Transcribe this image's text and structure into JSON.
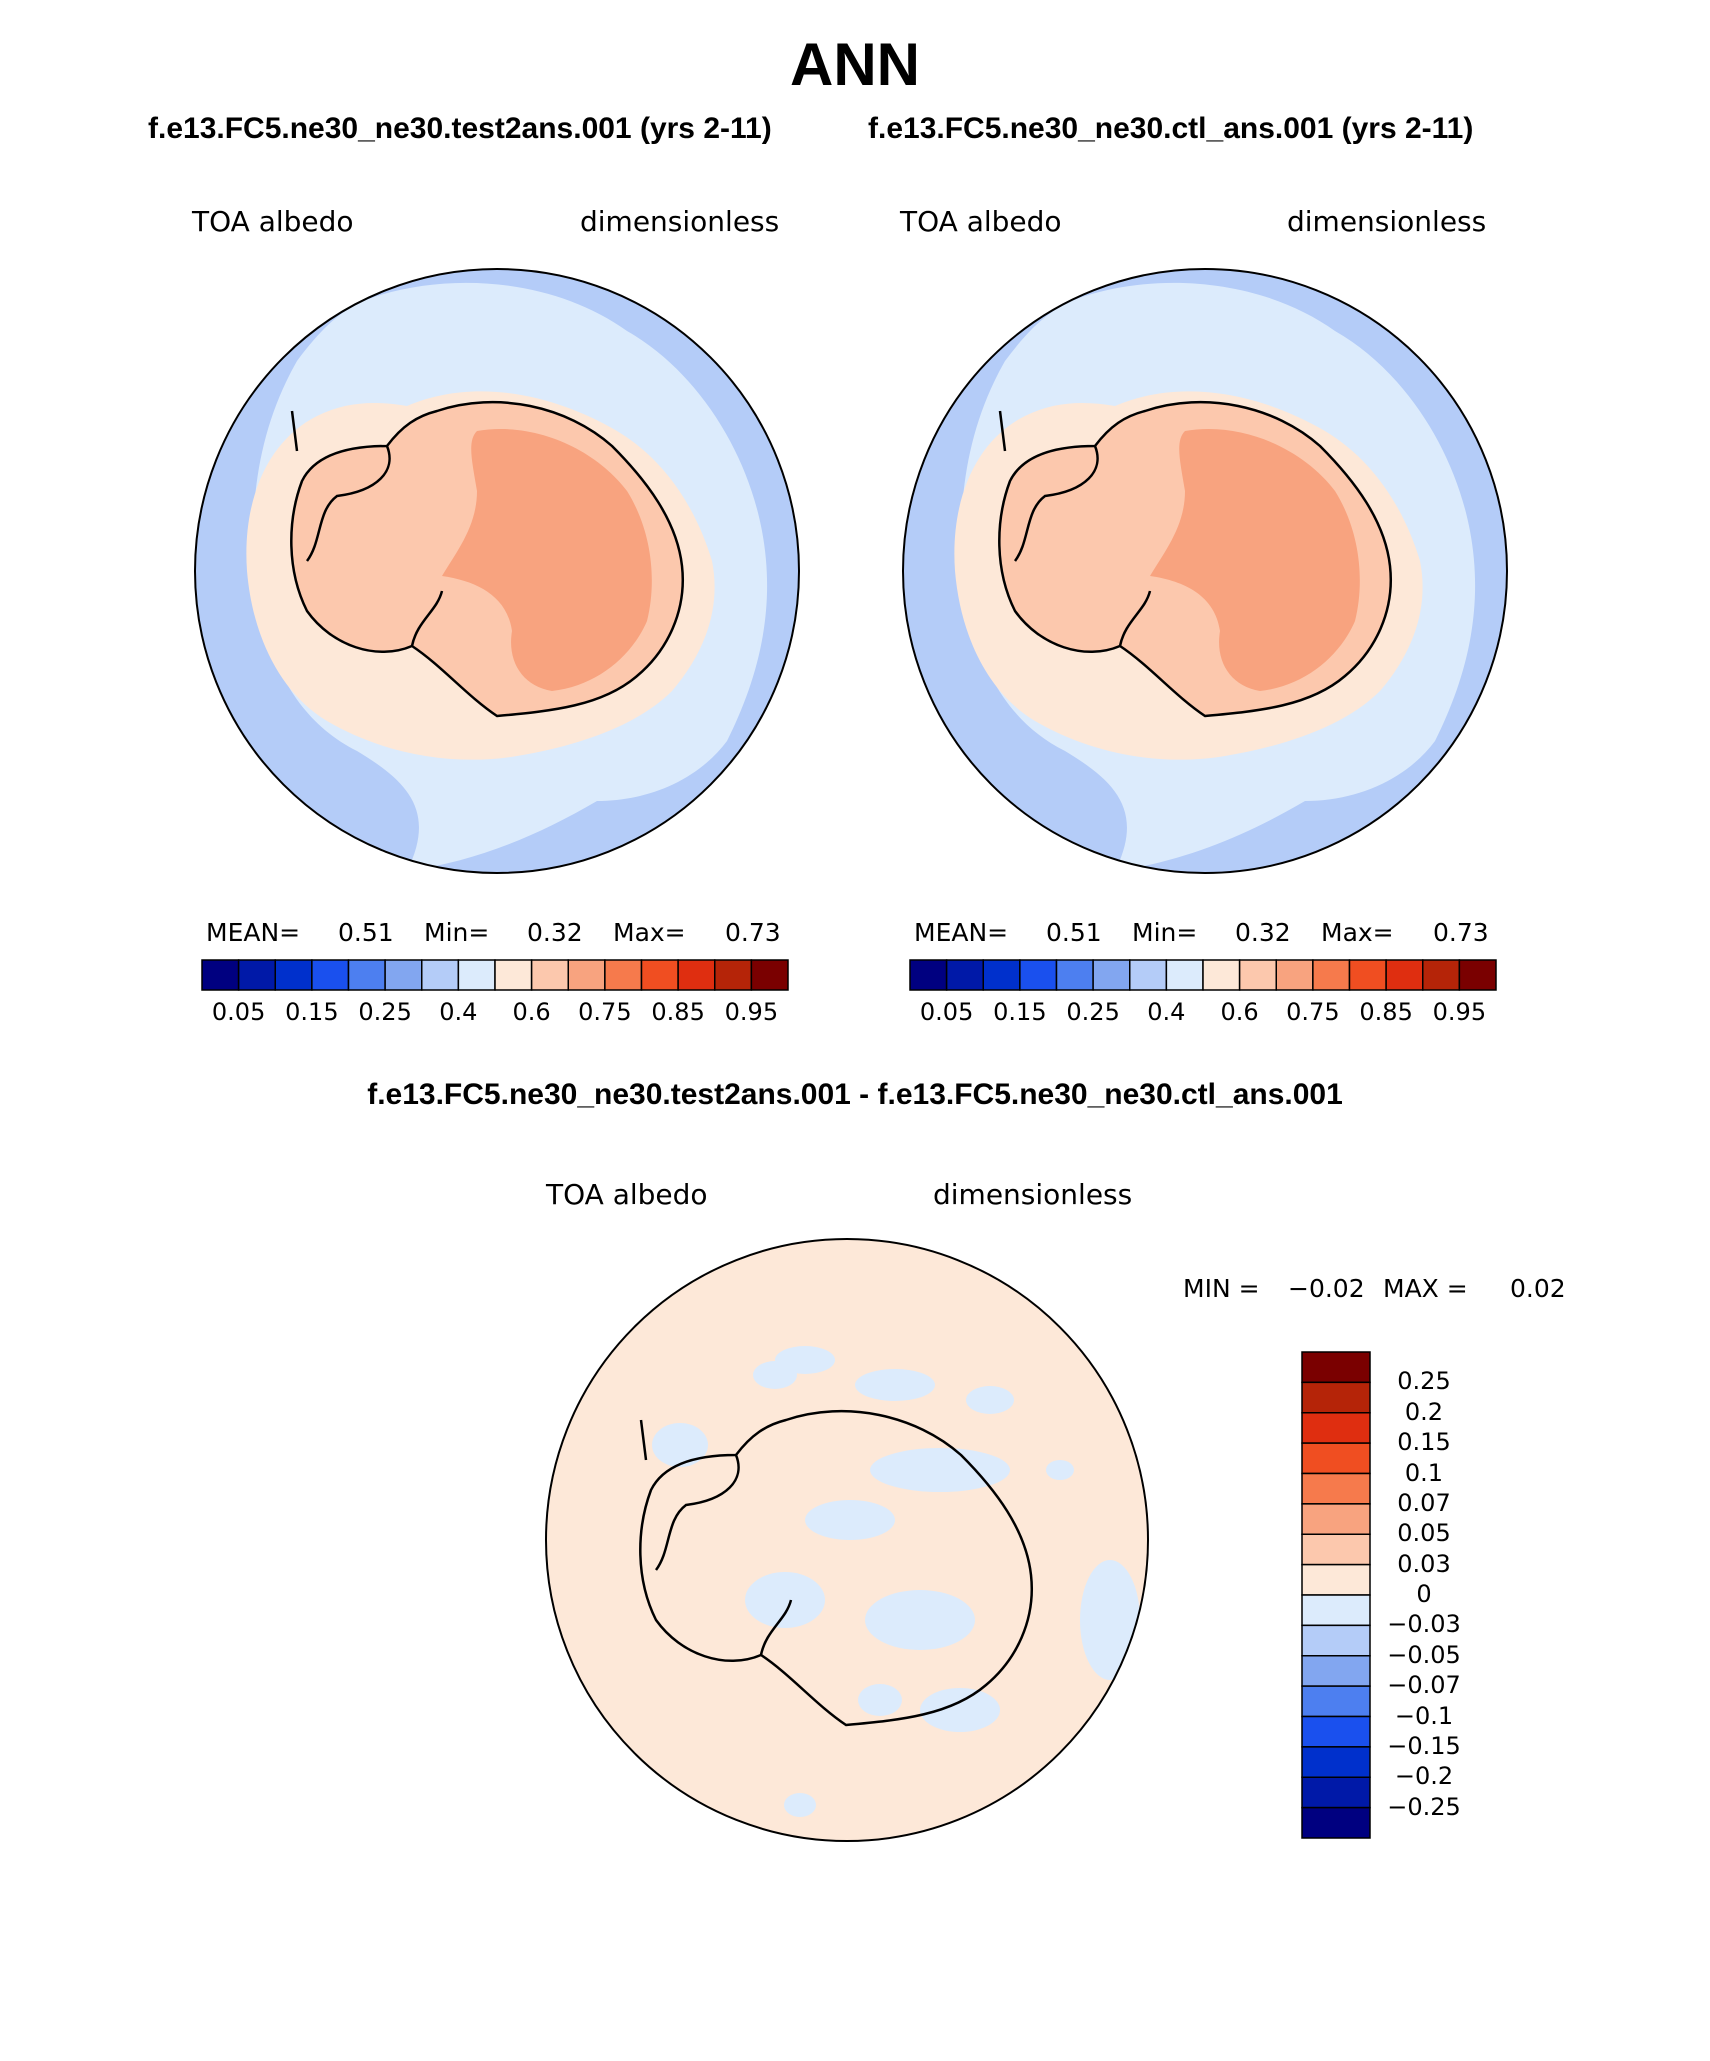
{
  "title": "ANN",
  "panels": [
    {
      "case_label": "f.e13.FC5.ne30_ne30.test2ans.001 (yrs 2-11)",
      "variable": "TOA albedo",
      "units": "dimensionless",
      "stats": {
        "mean_label": "MEAN=",
        "mean": "0.51",
        "min_label": "Min=",
        "min": "0.32",
        "max_label": "Max=",
        "max": "0.73"
      }
    },
    {
      "case_label": "f.e13.FC5.ne30_ne30.ctl_ans.001 (yrs 2-11)",
      "variable": "TOA albedo",
      "units": "dimensionless",
      "stats": {
        "mean_label": "MEAN=",
        "mean": "0.51",
        "min_label": "Min=",
        "min": "0.32",
        "max_label": "Max=",
        "max": "0.73"
      }
    }
  ],
  "colorbar_top": {
    "colors": [
      "#000080",
      "#0019a8",
      "#0030cc",
      "#1a50ee",
      "#4d7ff0",
      "#82a6f0",
      "#b4ccf8",
      "#dcebfc",
      "#fde8d8",
      "#fcc8ad",
      "#f8a37f",
      "#f67a4c",
      "#f04e21",
      "#df2e10",
      "#b52408",
      "#7a0000"
    ],
    "tick_labels": [
      "0.05",
      "0.15",
      "0.25",
      "0.4",
      "0.6",
      "0.75",
      "0.85",
      "0.95"
    ]
  },
  "difference": {
    "title": "f.e13.FC5.ne30_ne30.test2ans.001 - f.e13.FC5.ne30_ne30.ctl_ans.001",
    "variable": "TOA albedo",
    "units": "dimensionless",
    "min_label": "MIN =",
    "min": "−0.02",
    "max_label": "MAX =",
    "max": "0.02",
    "colorbar": {
      "colors_top_to_bottom": [
        "#7a0000",
        "#b52408",
        "#df2e10",
        "#f04e21",
        "#f67a4c",
        "#f8a37f",
        "#fcc8ad",
        "#fde8d8",
        "#dcebfc",
        "#b4ccf8",
        "#82a6f0",
        "#4d7ff0",
        "#1a50ee",
        "#0030cc",
        "#0019a8",
        "#000080"
      ],
      "tick_labels": [
        "0.25",
        "0.2",
        "0.15",
        "0.1",
        "0.07",
        "0.05",
        "0.03",
        "0",
        "−0.03",
        "−0.05",
        "−0.07",
        "−0.1",
        "−0.15",
        "−0.2",
        "−0.25"
      ]
    }
  },
  "colors": {
    "ocean_far": "#b4ccf8",
    "ocean_near": "#dcebfc",
    "sea_ice": "#fde8d8",
    "coast_land": "#fcc8ad",
    "plateau": "#f8a37f",
    "diff_background": "#fde8d8",
    "diff_negative": "#dcebfc"
  }
}
